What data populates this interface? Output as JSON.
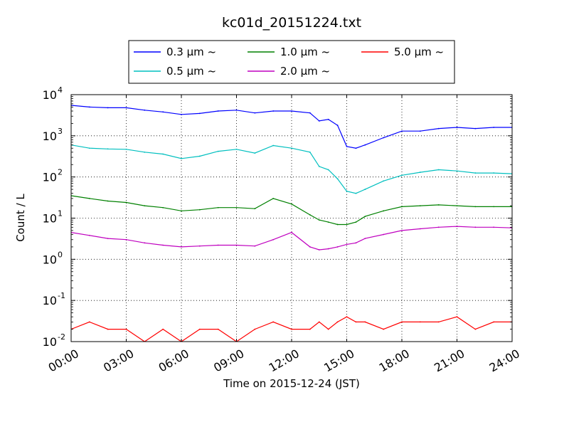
{
  "chart_data": {
    "type": "line",
    "title": "kc01d_20151224.txt",
    "xlabel": "Time on 2015-12-24 (JST)",
    "ylabel": "Count / L",
    "yscale": "log",
    "ylim": [
      0.01,
      10000
    ],
    "xlim": [
      "00:00",
      "24:00"
    ],
    "x_ticks": [
      "00:00",
      "03:00",
      "06:00",
      "09:00",
      "12:00",
      "15:00",
      "18:00",
      "21:00",
      "24:00"
    ],
    "y_ticks": [
      {
        "value": 0.01,
        "base": "10",
        "exp": "-2"
      },
      {
        "value": 0.1,
        "base": "10",
        "exp": "-1"
      },
      {
        "value": 1,
        "base": "10",
        "exp": "0"
      },
      {
        "value": 10,
        "base": "10",
        "exp": "1"
      },
      {
        "value": 100,
        "base": "10",
        "exp": "2"
      },
      {
        "value": 1000,
        "base": "10",
        "exp": "3"
      },
      {
        "value": 10000,
        "base": "10",
        "exp": "4"
      }
    ],
    "grid": true,
    "legend_position": "top-center",
    "x": [
      "00:00",
      "01:00",
      "02:00",
      "03:00",
      "04:00",
      "05:00",
      "06:00",
      "07:00",
      "08:00",
      "09:00",
      "10:00",
      "11:00",
      "12:00",
      "13:00",
      "13:30",
      "14:00",
      "14:30",
      "15:00",
      "15:30",
      "16:00",
      "17:00",
      "18:00",
      "19:00",
      "20:00",
      "21:00",
      "22:00",
      "23:00",
      "24:00"
    ],
    "series": [
      {
        "name": "0.3 µm ~",
        "color": "#0000ff",
        "values": [
          5500,
          5000,
          4800,
          4800,
          4200,
          3800,
          3300,
          3500,
          4000,
          4200,
          3600,
          4000,
          4000,
          3600,
          2300,
          2500,
          1800,
          550,
          500,
          600,
          900,
          1300,
          1300,
          1500,
          1600,
          1500,
          1600,
          1600
        ]
      },
      {
        "name": "0.5 µm ~",
        "color": "#00bfbf",
        "values": [
          600,
          500,
          480,
          470,
          400,
          360,
          280,
          320,
          420,
          470,
          380,
          580,
          500,
          400,
          180,
          150,
          90,
          45,
          40,
          50,
          80,
          110,
          130,
          150,
          140,
          125,
          125,
          120
        ]
      },
      {
        "name": "1.0 µm ~",
        "color": "#008000",
        "values": [
          35,
          30,
          26,
          24,
          20,
          18,
          15,
          16,
          18,
          18,
          17,
          30,
          22,
          12,
          9,
          8,
          7,
          7,
          8,
          11,
          15,
          19,
          20,
          21,
          20,
          19,
          19,
          19
        ]
      },
      {
        "name": "2.0 µm ~",
        "color": "#bf00bf",
        "values": [
          4.5,
          3.8,
          3.2,
          3.0,
          2.5,
          2.2,
          2.0,
          2.1,
          2.2,
          2.2,
          2.1,
          3.0,
          4.5,
          2.0,
          1.7,
          1.8,
          2.0,
          2.3,
          2.5,
          3.2,
          4.0,
          5.0,
          5.5,
          6.0,
          6.3,
          6.0,
          6.0,
          5.8
        ]
      },
      {
        "name": "5.0 µm ~",
        "color": "#ff0000",
        "values": [
          0.02,
          0.03,
          0.02,
          0.02,
          0.01,
          0.02,
          0.01,
          0.02,
          0.02,
          0.01,
          0.02,
          0.03,
          0.02,
          0.02,
          0.03,
          0.02,
          0.03,
          0.04,
          0.03,
          0.03,
          0.02,
          0.03,
          0.03,
          0.03,
          0.04,
          0.02,
          0.03,
          0.03
        ]
      }
    ]
  }
}
